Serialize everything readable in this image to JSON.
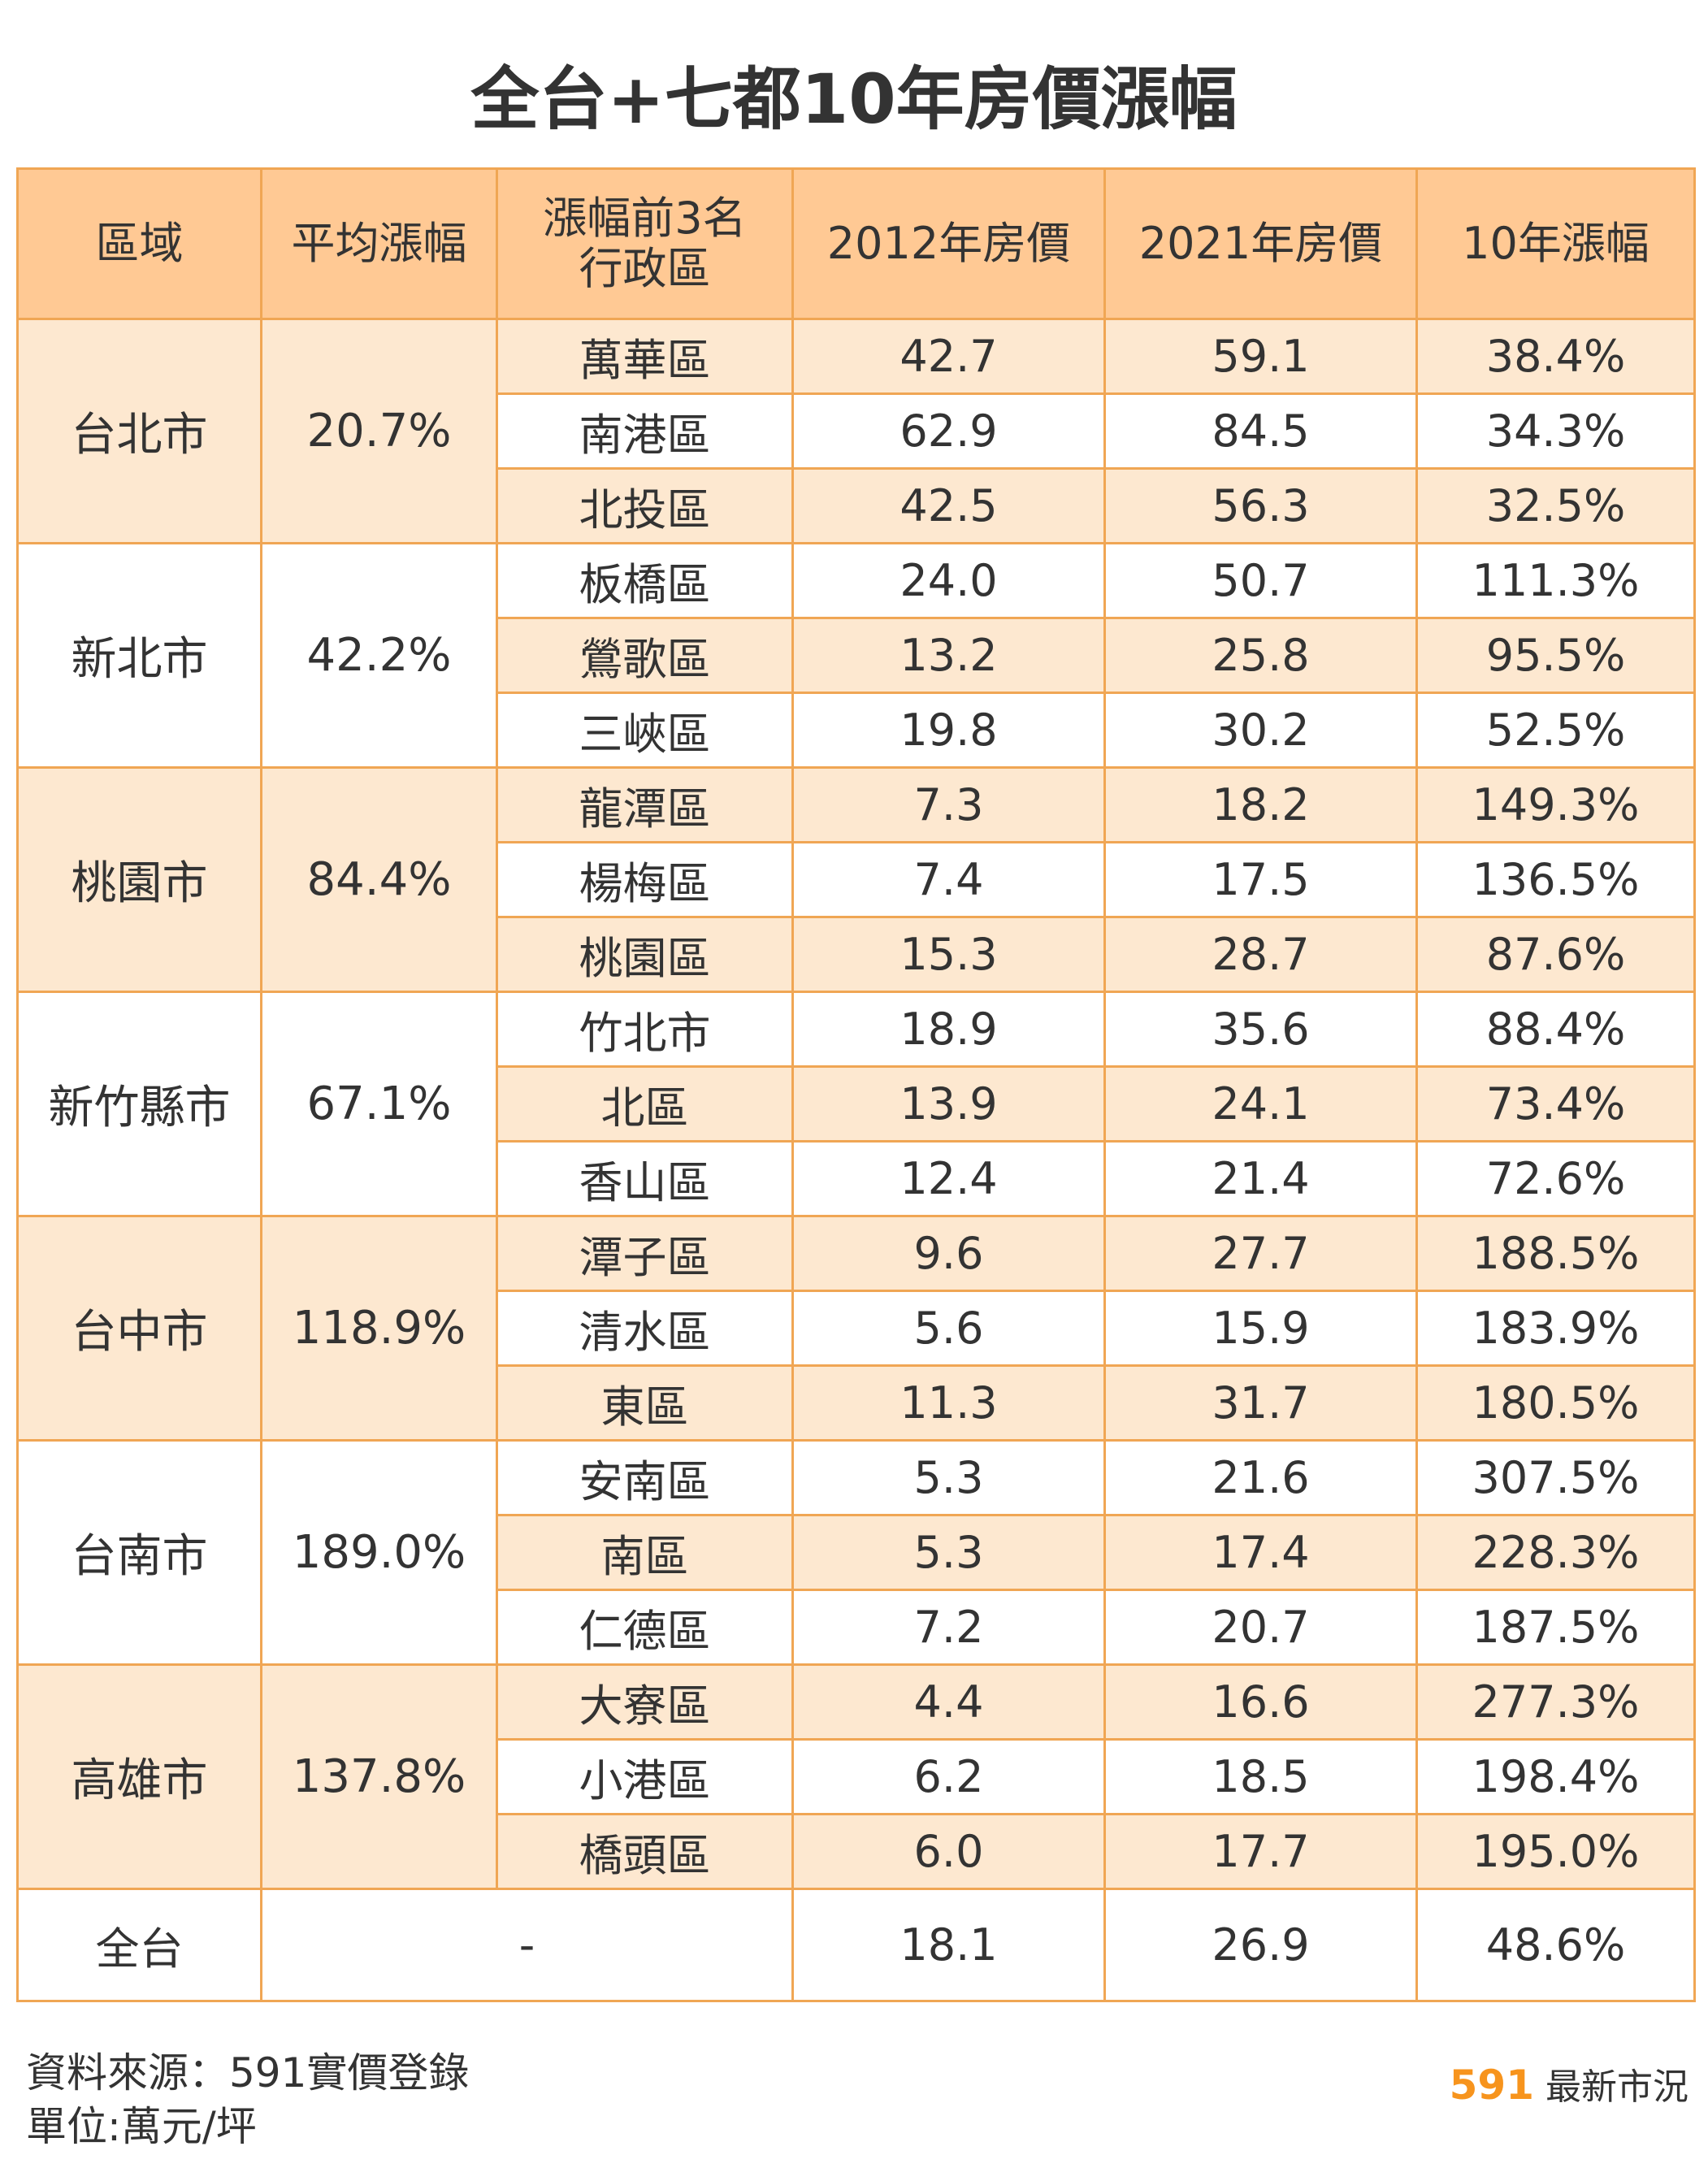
{
  "chart_data": {
    "type": "table",
    "title": "全台+七都10年房價漲幅",
    "columns": [
      "區域",
      "平均漲幅",
      "漲幅前3名\n行政區",
      "2012年房價",
      "2021年房價",
      "10年漲幅"
    ],
    "groups": [
      {
        "city": "台北市",
        "avg": "20.7%",
        "rows": [
          {
            "district": "萬華區",
            "p2012": "42.7",
            "p2021": "59.1",
            "growth": "38.4%"
          },
          {
            "district": "南港區",
            "p2012": "62.9",
            "p2021": "84.5",
            "growth": "34.3%"
          },
          {
            "district": "北投區",
            "p2012": "42.5",
            "p2021": "56.3",
            "growth": "32.5%"
          }
        ]
      },
      {
        "city": "新北市",
        "avg": "42.2%",
        "rows": [
          {
            "district": "板橋區",
            "p2012": "24.0",
            "p2021": "50.7",
            "growth": "111.3%"
          },
          {
            "district": "鶯歌區",
            "p2012": "13.2",
            "p2021": "25.8",
            "growth": "95.5%"
          },
          {
            "district": "三峽區",
            "p2012": "19.8",
            "p2021": "30.2",
            "growth": "52.5%"
          }
        ]
      },
      {
        "city": "桃園市",
        "avg": "84.4%",
        "rows": [
          {
            "district": "龍潭區",
            "p2012": "7.3",
            "p2021": "18.2",
            "growth": "149.3%"
          },
          {
            "district": "楊梅區",
            "p2012": "7.4",
            "p2021": "17.5",
            "growth": "136.5%"
          },
          {
            "district": "桃園區",
            "p2012": "15.3",
            "p2021": "28.7",
            "growth": "87.6%"
          }
        ]
      },
      {
        "city": "新竹縣市",
        "avg": "67.1%",
        "rows": [
          {
            "district": "竹北市",
            "p2012": "18.9",
            "p2021": "35.6",
            "growth": "88.4%"
          },
          {
            "district": "北區",
            "p2012": "13.9",
            "p2021": "24.1",
            "growth": "73.4%"
          },
          {
            "district": "香山區",
            "p2012": "12.4",
            "p2021": "21.4",
            "growth": "72.6%"
          }
        ]
      },
      {
        "city": "台中市",
        "avg": "118.9%",
        "rows": [
          {
            "district": "潭子區",
            "p2012": "9.6",
            "p2021": "27.7",
            "growth": "188.5%"
          },
          {
            "district": "清水區",
            "p2012": "5.6",
            "p2021": "15.9",
            "growth": "183.9%"
          },
          {
            "district": "東區",
            "p2012": "11.3",
            "p2021": "31.7",
            "growth": "180.5%"
          }
        ]
      },
      {
        "city": "台南市",
        "avg": "189.0%",
        "rows": [
          {
            "district": "安南區",
            "p2012": "5.3",
            "p2021": "21.6",
            "growth": "307.5%"
          },
          {
            "district": "南區",
            "p2012": "5.3",
            "p2021": "17.4",
            "growth": "228.3%"
          },
          {
            "district": "仁德區",
            "p2012": "7.2",
            "p2021": "20.7",
            "growth": "187.5%"
          }
        ]
      },
      {
        "city": "高雄市",
        "avg": "137.8%",
        "rows": [
          {
            "district": "大寮區",
            "p2012": "4.4",
            "p2021": "16.6",
            "growth": "277.3%"
          },
          {
            "district": "小港區",
            "p2012": "6.2",
            "p2021": "18.5",
            "growth": "198.4%"
          },
          {
            "district": "橋頭區",
            "p2012": "6.0",
            "p2021": "17.7",
            "growth": "195.0%"
          }
        ]
      }
    ],
    "total": {
      "label": "全台",
      "avg": "-",
      "p2012": "18.1",
      "p2021": "26.9",
      "growth": "48.6%"
    }
  },
  "footer": {
    "source": "資料來源：591實價登錄",
    "unit": "單位:萬元/坪",
    "brand_number": "591",
    "brand_text": "最新市況"
  },
  "colors": {
    "header_bg": "#ffc994",
    "stripe_bg": "#fde8d0",
    "border": "#f0a654",
    "brand": "#f7941d"
  }
}
